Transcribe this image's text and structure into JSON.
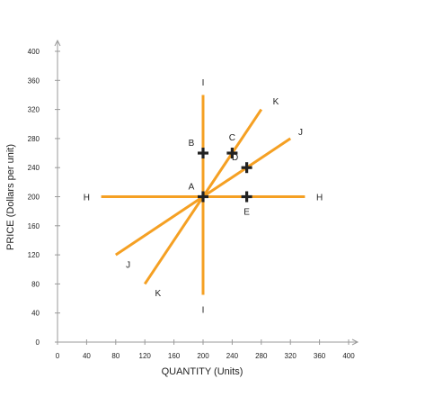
{
  "chart_data": {
    "type": "line",
    "xlabel": "QUANTITY (Units)",
    "ylabel": "PRICE (Dollars per unit)",
    "xlim": [
      0,
      400
    ],
    "ylim": [
      0,
      400
    ],
    "x_ticks": [
      0,
      40,
      80,
      120,
      160,
      200,
      240,
      280,
      320,
      360,
      400
    ],
    "y_ticks": [
      0,
      40,
      80,
      120,
      160,
      200,
      240,
      280,
      320,
      360,
      400
    ],
    "grid": false,
    "line_color": "#f5a023",
    "series": [
      {
        "name": "H",
        "points": [
          [
            60,
            200
          ],
          [
            340,
            200
          ]
        ],
        "labels": [
          {
            "text": "H",
            "x": 40,
            "y": 200
          },
          {
            "text": "H",
            "x": 360,
            "y": 200
          }
        ]
      },
      {
        "name": "I",
        "points": [
          [
            200,
            65
          ],
          [
            200,
            340
          ]
        ],
        "labels": [
          {
            "text": "I",
            "x": 200,
            "y": 358
          },
          {
            "text": "I",
            "x": 200,
            "y": 45
          }
        ]
      },
      {
        "name": "J",
        "points": [
          [
            80,
            120
          ],
          [
            320,
            280
          ]
        ],
        "labels": [
          {
            "text": "J",
            "x": 97,
            "y": 107
          },
          {
            "text": "J",
            "x": 334,
            "y": 290
          }
        ]
      },
      {
        "name": "K",
        "points": [
          [
            120,
            80
          ],
          [
            280,
            320
          ]
        ],
        "labels": [
          {
            "text": "K",
            "x": 138,
            "y": 68
          },
          {
            "text": "K",
            "x": 300,
            "y": 332
          }
        ]
      }
    ],
    "points": [
      {
        "label": "A",
        "x": 200,
        "y": 200,
        "label_pos": "upper-left"
      },
      {
        "label": "B",
        "x": 200,
        "y": 260,
        "label_pos": "upper-left"
      },
      {
        "label": "C",
        "x": 240,
        "y": 260,
        "label_pos": "above"
      },
      {
        "label": "D",
        "x": 260,
        "y": 240,
        "label_pos": "upper-left"
      },
      {
        "label": "E",
        "x": 260,
        "y": 200,
        "label_pos": "below"
      }
    ]
  }
}
